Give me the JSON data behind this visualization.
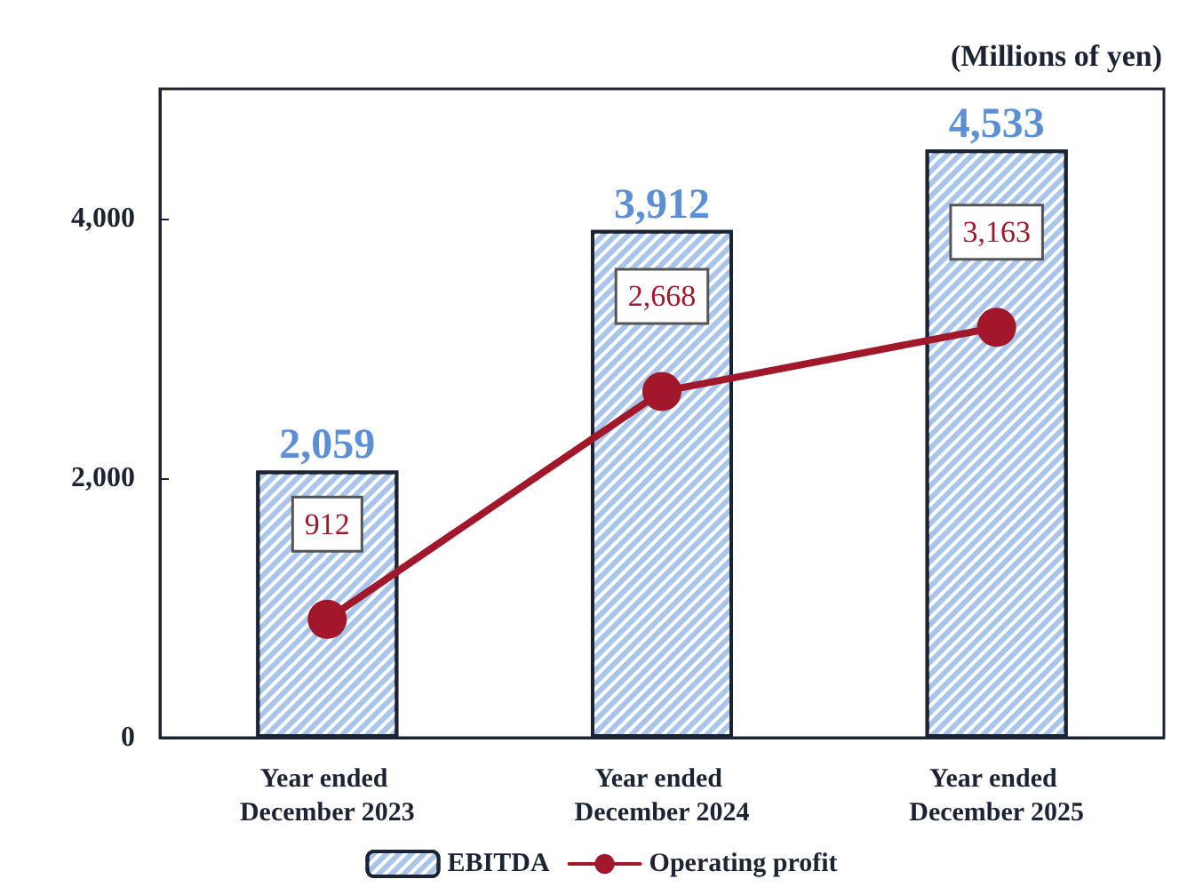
{
  "chart_data": {
    "type": "bar",
    "ylabel": "(Millions of yen)",
    "categories": [
      "Year ended December 2023",
      "Year ended December 2024",
      "Year ended December 2025"
    ],
    "series": [
      {
        "name": "EBITDA",
        "color": "#a9c6ea",
        "values": [
          2059,
          3912,
          4533
        ],
        "value_labels": [
          "2,059",
          "3,912",
          "4,533"
        ]
      },
      {
        "name": "Operating profit",
        "type": "line",
        "color": "#a0182a",
        "values": [
          912,
          2668,
          3163
        ],
        "value_labels": [
          "912",
          "2,668",
          "3,163"
        ]
      }
    ],
    "ylim": [
      0,
      5000
    ],
    "yticks": [
      0,
      {
        "value": 2000,
        "label": "2,000"
      },
      {
        "value": 4000,
        "label": "4,000"
      }
    ],
    "grid": false,
    "legend": "bottom",
    "marker": "circle",
    "line_style": "solid"
  }
}
